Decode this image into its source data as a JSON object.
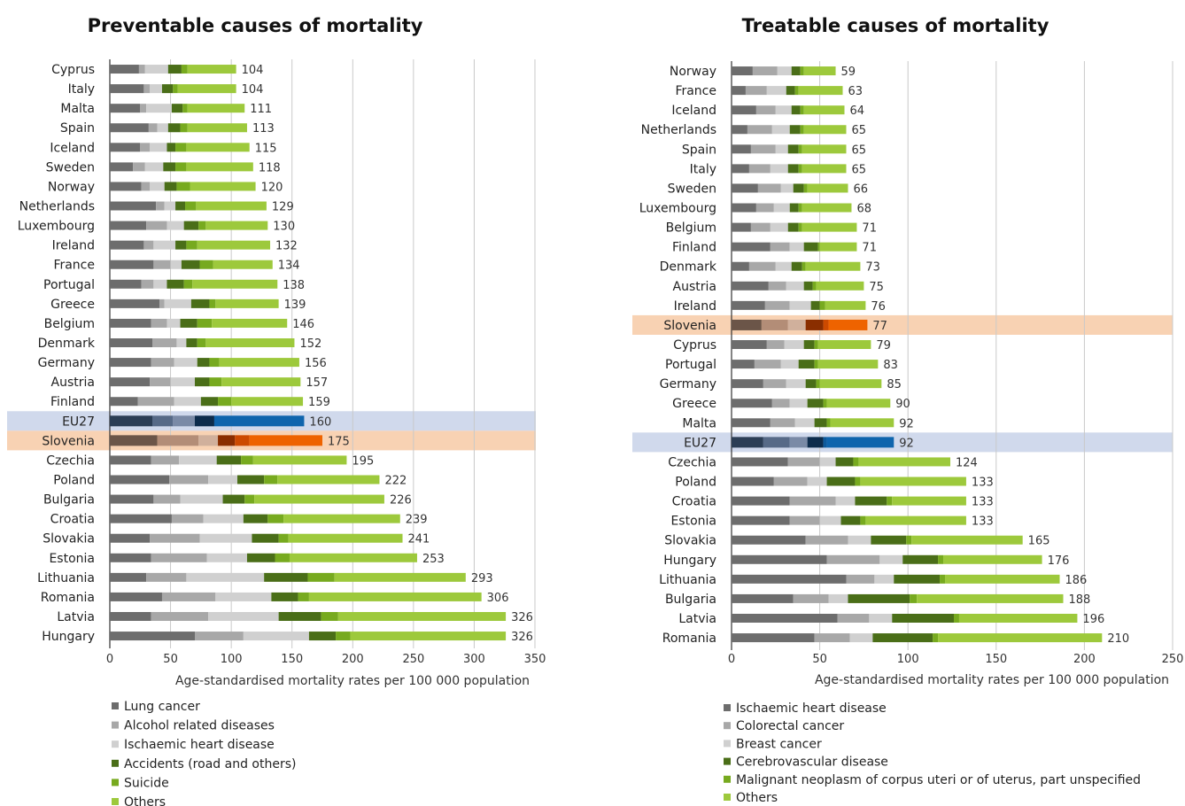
{
  "chart_data": [
    {
      "type": "bar",
      "orientation": "horizontal",
      "stacked": true,
      "title": "Preventable causes of mortality",
      "xlabel": "Age-standardised mortality rates per 100 000 population",
      "xlim": [
        0,
        350
      ],
      "xticks": [
        "0",
        "50",
        "100",
        "150",
        "200",
        "250",
        "300",
        "350"
      ],
      "grid": true,
      "legend": "bottom",
      "categories": [
        "Cyprus",
        "Italy",
        "Malta",
        "Spain",
        "Iceland",
        "Sweden",
        "Norway",
        "Netherlands",
        "Luxembourg",
        "Ireland",
        "France",
        "Portugal",
        "Greece",
        "Belgium",
        "Denmark",
        "Germany",
        "Austria",
        "Finland",
        "EU27",
        "Slovenia",
        "Czechia",
        "Poland",
        "Bulgaria",
        "Croatia",
        "Slovakia",
        "Estonia",
        "Lithuania",
        "Romania",
        "Latvia",
        "Hungary"
      ],
      "totals": [
        "104",
        "104",
        "111",
        "113",
        "115",
        "118",
        "120",
        "129",
        "130",
        "132",
        "134",
        "138",
        "139",
        "146",
        "152",
        "156",
        "157",
        "159",
        "160",
        "175",
        "195",
        "222",
        "226",
        "239",
        "241",
        "253",
        "293",
        "306",
        "326",
        "326"
      ],
      "highlight": {
        "EU27": "blue",
        "Slovenia": "orange"
      },
      "series": [
        {
          "name": "Lung cancer",
          "color": "#6d6d6d",
          "values": [
            24,
            28,
            25,
            32,
            25,
            19,
            26,
            38,
            30,
            28,
            36,
            26,
            41,
            34,
            35,
            34,
            33,
            23,
            35,
            39,
            34,
            49,
            36,
            51,
            33,
            34,
            30,
            43,
            34,
            70
          ]
        },
        {
          "name": "Alcohol related diseases",
          "color": "#a8a8a8",
          "values": [
            5,
            5,
            5,
            7,
            8,
            10,
            7,
            7,
            17,
            8,
            14,
            10,
            4,
            13,
            20,
            19,
            17,
            30,
            17,
            34,
            23,
            32,
            22,
            26,
            41,
            46,
            33,
            44,
            47,
            40
          ]
        },
        {
          "name": "Ischaemic heart disease",
          "color": "#d0d0d0",
          "values": [
            19,
            10,
            21,
            9,
            14,
            15,
            12,
            9,
            14,
            18,
            9,
            11,
            22,
            11,
            8,
            19,
            20,
            22,
            18,
            16,
            31,
            24,
            35,
            33,
            43,
            33,
            64,
            46,
            58,
            54
          ]
        },
        {
          "name": "Accidents (road and others)",
          "color": "#4a6e18",
          "values": [
            11,
            9,
            9,
            10,
            7,
            10,
            10,
            8,
            12,
            9,
            15,
            14,
            15,
            14,
            9,
            10,
            12,
            14,
            16,
            14,
            20,
            22,
            18,
            20,
            22,
            23,
            36,
            22,
            35,
            22
          ]
        },
        {
          "name": "Suicide",
          "color": "#77aa1f",
          "values": [
            5,
            4,
            4,
            6,
            9,
            9,
            11,
            9,
            6,
            9,
            11,
            7,
            5,
            12,
            7,
            8,
            10,
            11,
            0,
            12,
            10,
            11,
            8,
            13,
            8,
            12,
            22,
            9,
            14,
            12
          ]
        },
        {
          "name": "Others",
          "color": "#9dc93c",
          "values": [
            40,
            48,
            47,
            49,
            52,
            55,
            54,
            58,
            51,
            60,
            49,
            70,
            52,
            62,
            73,
            66,
            65,
            59,
            74,
            60,
            77,
            84,
            107,
            96,
            94,
            105,
            108,
            142,
            138,
            128
          ]
        }
      ]
    },
    {
      "type": "bar",
      "orientation": "horizontal",
      "stacked": true,
      "title": "Treatable causes of mortality",
      "xlabel": "Age-standardised mortality rates per 100 000 population",
      "xlim": [
        0,
        250
      ],
      "xticks": [
        "0",
        "50",
        "100",
        "150",
        "200",
        "250"
      ],
      "grid": true,
      "legend": "bottom",
      "categories": [
        "Norway",
        "France",
        "Iceland",
        "Netherlands",
        "Spain",
        "Italy",
        "Sweden",
        "Luxembourg",
        "Belgium",
        "Finland",
        "Denmark",
        "Austria",
        "Ireland",
        "Slovenia",
        "Cyprus",
        "Portugal",
        "Germany",
        "Greece",
        "Malta",
        "EU27",
        "Czechia",
        "Poland",
        "Croatia",
        "Estonia",
        "Slovakia",
        "Hungary",
        "Lithuania",
        "Bulgaria",
        "Latvia",
        "Romania"
      ],
      "totals": [
        "59",
        "63",
        "64",
        "65",
        "65",
        "65",
        "66",
        "68",
        "71",
        "71",
        "73",
        "75",
        "76",
        "77",
        "79",
        "83",
        "85",
        "90",
        "92",
        "92",
        "124",
        "133",
        "133",
        "133",
        "165",
        "176",
        "186",
        "188",
        "196",
        "210"
      ],
      "highlight": {
        "EU27": "blue",
        "Slovenia": "orange"
      },
      "series": [
        {
          "name": "Ischaemic heart disease",
          "color": "#6d6d6d",
          "values": [
            12,
            8,
            14,
            9,
            11,
            10,
            15,
            14,
            11,
            22,
            10,
            21,
            19,
            17,
            20,
            13,
            18,
            23,
            22,
            18,
            32,
            24,
            33,
            33,
            42,
            54,
            65,
            35,
            60,
            47
          ]
        },
        {
          "name": "Colorectal cancer",
          "color": "#a8a8a8",
          "values": [
            14,
            12,
            11,
            14,
            14,
            12,
            13,
            10,
            11,
            11,
            15,
            10,
            14,
            15,
            10,
            15,
            13,
            10,
            14,
            15,
            18,
            19,
            26,
            17,
            24,
            30,
            16,
            20,
            18,
            20
          ]
        },
        {
          "name": "Breast cancer",
          "color": "#d0d0d0",
          "values": [
            8,
            11,
            9,
            10,
            7,
            10,
            7,
            9,
            10,
            8,
            9,
            10,
            12,
            10,
            11,
            10,
            11,
            10,
            11,
            10,
            9,
            11,
            11,
            12,
            13,
            13,
            11,
            11,
            13,
            13
          ]
        },
        {
          "name": "Cerebrovascular disease",
          "color": "#4a6e18",
          "values": [
            5,
            5,
            5,
            6,
            6,
            6,
            6,
            5,
            6,
            8,
            6,
            5,
            5,
            10,
            6,
            9,
            6,
            9,
            7,
            9,
            10,
            16,
            18,
            11,
            20,
            20,
            26,
            35,
            35,
            34
          ]
        },
        {
          "name": "Malignant neoplasm of corpus uteri or of uterus, part unspecified",
          "color": "#77aa1f",
          "values": [
            2,
            2,
            2,
            2,
            2,
            2,
            2,
            2,
            2,
            1,
            2,
            2,
            3,
            3,
            2,
            2,
            2,
            2,
            2,
            2,
            3,
            3,
            3,
            3,
            3,
            3,
            3,
            4,
            3,
            3
          ]
        },
        {
          "name": "Others",
          "color": "#9dc93c",
          "values": [
            18,
            25,
            23,
            24,
            25,
            25,
            23,
            28,
            31,
            21,
            31,
            27,
            23,
            22,
            30,
            34,
            35,
            36,
            36,
            38,
            52,
            60,
            42,
            57,
            63,
            56,
            65,
            83,
            67,
            93
          ]
        }
      ]
    }
  ],
  "colors": {
    "eu27_band": "#d0d9ec",
    "slovenia_band": "#f8d2b3",
    "eu27_bar": [
      "#2c3e55",
      "#576a87",
      "#7a8aa6",
      "#0d2c4c",
      "#0e5a9b",
      "#0f65ad"
    ],
    "slovenia_bar": [
      "#6b5548",
      "#b38d77",
      "#d0b09c",
      "#8a2e00",
      "#cc4a00",
      "#ee6300"
    ]
  }
}
